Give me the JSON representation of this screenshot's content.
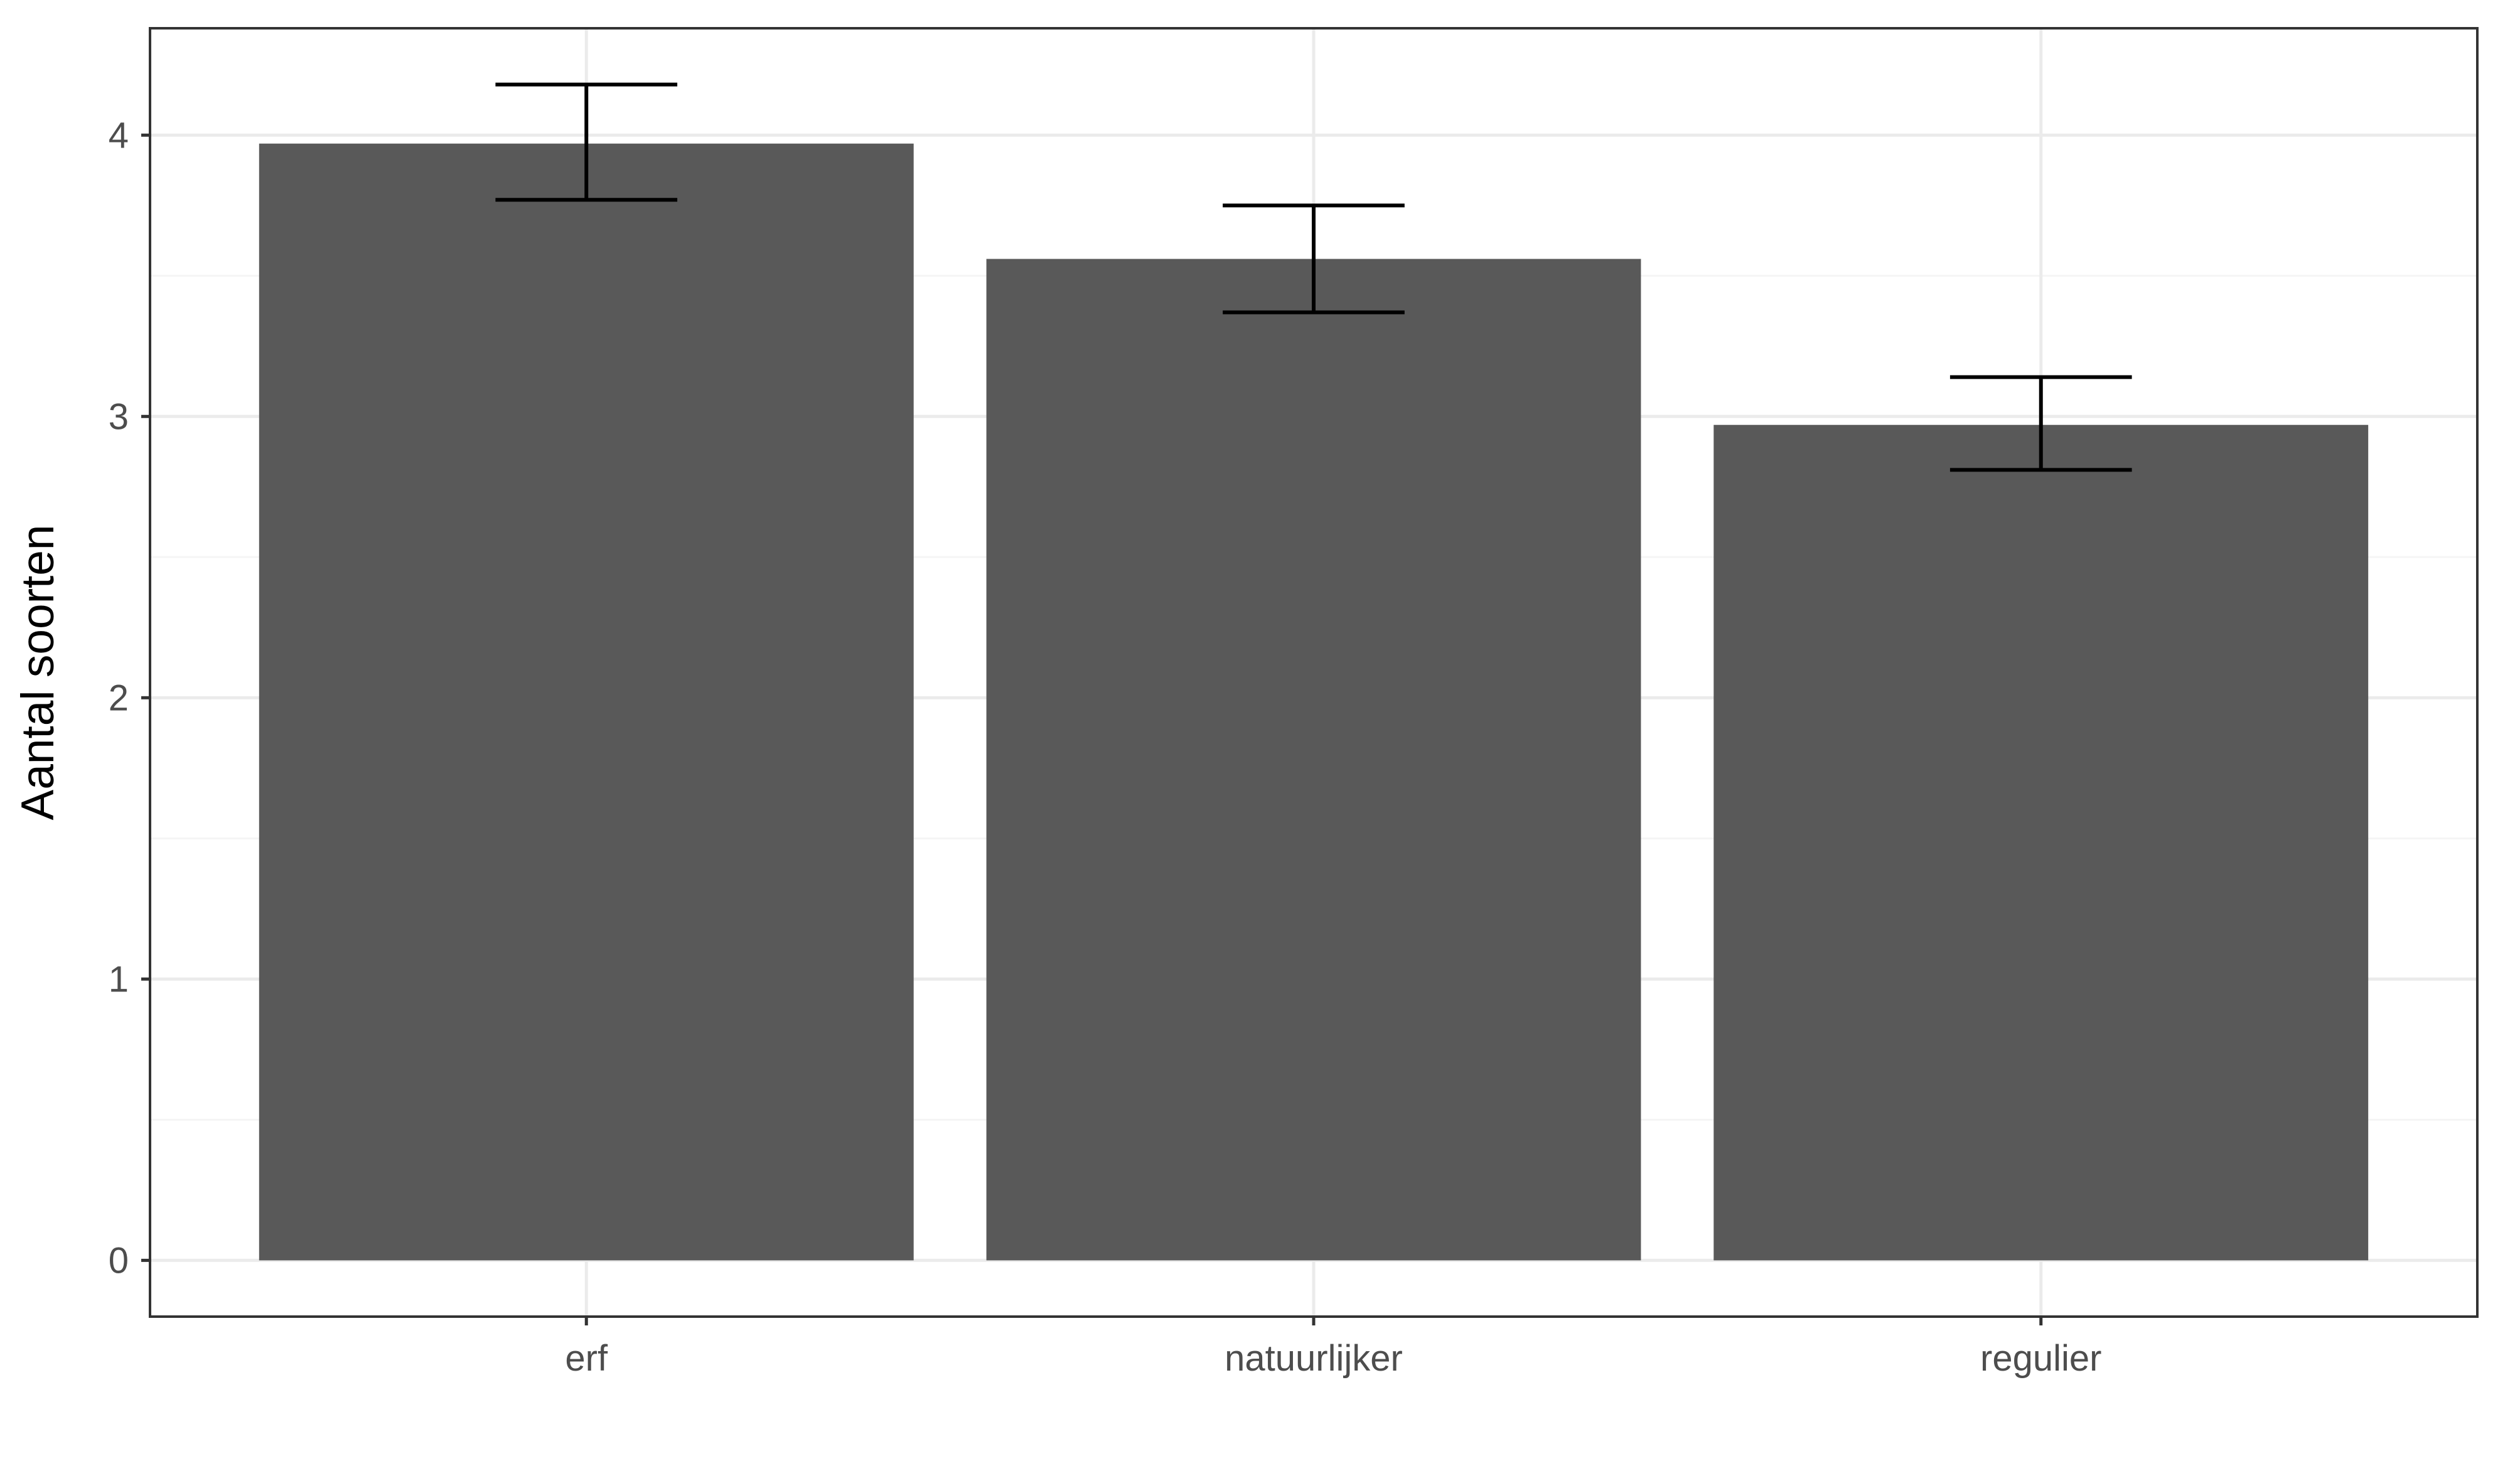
{
  "chart_data": {
    "type": "bar",
    "title": "",
    "xlabel": "",
    "ylabel": "Aantal soorten",
    "categories": [
      "erf",
      "natuurlijker",
      "regulier"
    ],
    "values": [
      3.97,
      3.56,
      2.97
    ],
    "error_bars": [
      {
        "low": 3.77,
        "high": 4.18
      },
      {
        "low": 3.37,
        "high": 3.75
      },
      {
        "low": 2.81,
        "high": 3.14
      }
    ],
    "ylim": [
      -0.2,
      4.38
    ],
    "yticks": [
      0,
      1,
      2,
      3,
      4
    ],
    "grid": true,
    "legend": "none",
    "colors": {
      "bar": "#595959",
      "errorbar": "#000000",
      "grid_major": "#ebebeb",
      "grid_minor": "#f5f5f5",
      "panel_border": "#333333"
    }
  }
}
